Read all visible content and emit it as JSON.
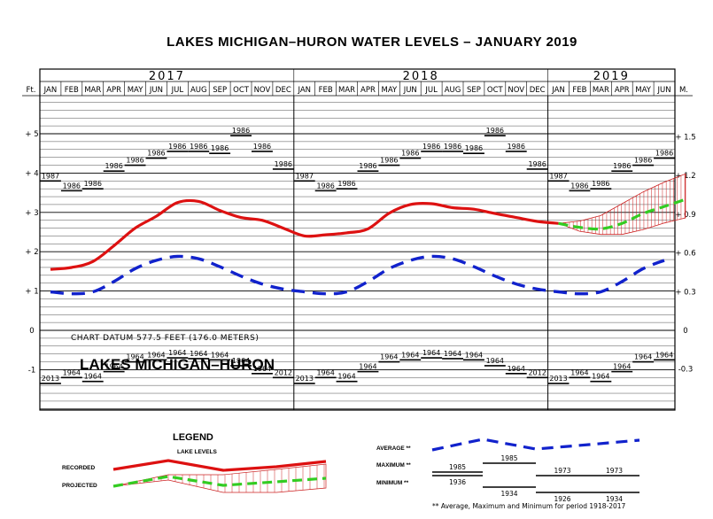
{
  "chart_data": {
    "type": "line",
    "title": "LAKES MICHIGAN–HURON WATER LEVELS – JANUARY 2019",
    "lake_label": "LAKES MICHIGAN–HURON",
    "datum_note": "CHART DATUM   577.5 FEET (176.0 METERS)",
    "left_unit": "Ft.",
    "right_unit": "M.",
    "years": [
      "2017",
      "2018",
      "2019"
    ],
    "months": [
      "JAN",
      "FEB",
      "MAR",
      "APR",
      "MAY",
      "JUN",
      "JUL",
      "AUG",
      "SEP",
      "OCT",
      "NOV",
      "DEC",
      "JAN",
      "FEB",
      "MAR",
      "APR",
      "MAY",
      "JUN",
      "JUL",
      "AUG",
      "SEP",
      "OCT",
      "NOV",
      "DEC",
      "JAN",
      "FEB",
      "MAR",
      "APR",
      "MAY",
      "JUN"
    ],
    "left_ticks": [
      {
        "label": "+ 5",
        "ft": 5
      },
      {
        "label": "+ 4",
        "ft": 4
      },
      {
        "label": "+ 3",
        "ft": 3
      },
      {
        "label": "+ 2",
        "ft": 2
      },
      {
        "label": "+ 1",
        "ft": 1
      },
      {
        "label": "0",
        "ft": 0
      },
      {
        "label": "-1",
        "ft": -1
      }
    ],
    "right_ticks": [
      {
        "label": "+ 1.5",
        "m": 1.5
      },
      {
        "label": "+ 1.2",
        "m": 1.2
      },
      {
        "label": "+ 0.9",
        "m": 0.9
      },
      {
        "label": "+ 0.6",
        "m": 0.6
      },
      {
        "label": "+ 0.3",
        "m": 0.3
      },
      {
        "label": "0",
        "m": 0
      },
      {
        "label": "-0.3",
        "m": -0.3
      }
    ],
    "ylim_ft": [
      -2.0,
      6.2
    ],
    "recorded": [
      1.55,
      1.6,
      1.75,
      2.15,
      2.6,
      2.9,
      3.25,
      3.28,
      3.05,
      2.87,
      2.8,
      2.6,
      2.4,
      2.43,
      2.48,
      2.58,
      2.98,
      3.2,
      3.22,
      3.12,
      3.08,
      2.97,
      2.87,
      2.77,
      2.72
    ],
    "projected": [
      2.72,
      2.62,
      2.58,
      2.72,
      2.97,
      3.15,
      3.33
    ],
    "projected_upper": [
      2.72,
      2.78,
      2.92,
      3.22,
      3.52,
      3.77,
      3.98
    ],
    "projected_lower": [
      2.72,
      2.52,
      2.44,
      2.44,
      2.56,
      2.73,
      2.86
    ],
    "average": [
      0.98,
      0.93,
      0.98,
      1.24,
      1.57,
      1.78,
      1.88,
      1.82,
      1.62,
      1.38,
      1.18,
      1.05,
      0.98,
      0.93,
      0.98,
      1.24,
      1.57,
      1.78,
      1.88,
      1.82,
      1.62,
      1.38,
      1.18,
      1.05,
      0.98,
      0.93,
      0.98,
      1.24,
      1.57,
      1.78
    ],
    "max_years": [
      "1987",
      "1986",
      "1986",
      "1986",
      "1986",
      "1986",
      "1986",
      "1986",
      "1986",
      "1986",
      "1986",
      "1986",
      "1987",
      "1986",
      "1986",
      "1986",
      "1986",
      "1986",
      "1986",
      "1986",
      "1986",
      "1986",
      "1986",
      "1986",
      "1987",
      "1986",
      "1986",
      "1986",
      "1986",
      "1986"
    ],
    "max_values": [
      3.8,
      3.55,
      3.6,
      4.05,
      4.2,
      4.38,
      4.55,
      4.55,
      4.5,
      4.95,
      4.55,
      4.1,
      3.8,
      3.55,
      3.6,
      4.05,
      4.2,
      4.38,
      4.55,
      4.55,
      4.5,
      4.95,
      4.55,
      4.1,
      3.8,
      3.55,
      3.6,
      4.05,
      4.2,
      4.38
    ],
    "min_years": [
      "2013",
      "1964",
      "1964",
      "1964",
      "1964",
      "1964",
      "1964",
      "1964",
      "1964",
      "1964",
      "1964",
      "2012",
      "2013",
      "1964",
      "1964",
      "1964",
      "1964",
      "1964",
      "1964",
      "1964",
      "1964",
      "1964",
      "1964",
      "2012",
      "2013",
      "1964",
      "1964",
      "1964",
      "1964",
      "1964"
    ],
    "min_values": [
      -1.35,
      -1.2,
      -1.3,
      -1.05,
      -0.8,
      -0.75,
      -0.7,
      -0.72,
      -0.75,
      -0.9,
      -1.1,
      -1.2,
      -1.35,
      -1.2,
      -1.3,
      -1.05,
      -0.8,
      -0.75,
      -0.7,
      -0.72,
      -0.75,
      -0.9,
      -1.1,
      -1.2,
      -1.35,
      -1.2,
      -1.3,
      -1.05,
      -0.8,
      -0.75
    ],
    "colors": {
      "recorded": "#dd1111",
      "projected": "#33cc22",
      "average": "#1122cc",
      "band": "#cc2222"
    },
    "grid": true
  },
  "legend": {
    "heading": "LEGEND",
    "subheading": "LAKE LEVELS",
    "recorded_label": "RECORDED",
    "projected_label": "PROJECTED",
    "average_label": "AVERAGE **",
    "maximum_label": "MAXIMUM **",
    "minimum_label": "MINIMUM **",
    "max_years": [
      "1985",
      "1985",
      "1973",
      "1973"
    ],
    "min_years": [
      "1936",
      "1934",
      "1926",
      "1934"
    ],
    "footnote": "** Average, Maximum and Minimum for period 1918-2017"
  }
}
